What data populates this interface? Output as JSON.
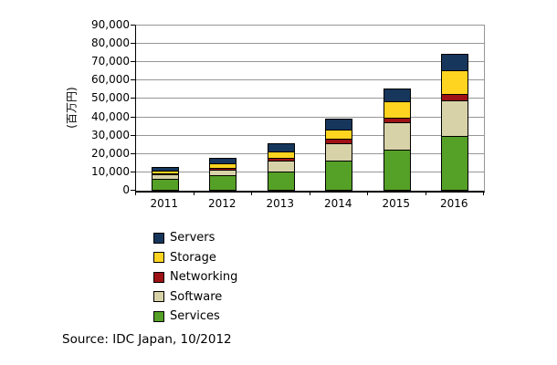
{
  "chart_data": {
    "type": "bar",
    "stacked": true,
    "categories": [
      "2011",
      "2012",
      "2013",
      "2014",
      "2015",
      "2016"
    ],
    "series": [
      {
        "name": "Servers",
        "color": "#16365C",
        "values": [
          2400,
          3800,
          5000,
          6300,
          7200,
          9500
        ]
      },
      {
        "name": "Storage",
        "color": "#FFD420",
        "values": [
          1900,
          2700,
          4000,
          5600,
          9600,
          13300
        ]
      },
      {
        "name": "Networking",
        "color": "#9E1114",
        "values": [
          600,
          1700,
          2200,
          2800,
          2900,
          3900
        ]
      },
      {
        "name": "Software",
        "color": "#D8D2A8",
        "values": [
          3100,
          3300,
          6300,
          10000,
          15300,
          20100
        ]
      },
      {
        "name": "Services",
        "color": "#55A026",
        "values": [
          6600,
          8500,
          10400,
          16600,
          22500,
          29700
        ]
      }
    ],
    "stack_order_bottom_to_top": [
      "Services",
      "Software",
      "Networking",
      "Storage",
      "Servers"
    ],
    "totals": [
      14600,
      20000,
      27900,
      41300,
      57500,
      76500
    ],
    "ylabel": "(百万円)",
    "ylim": [
      0,
      90000
    ],
    "ytick_step": 10000,
    "ytick_labels": [
      "0",
      "10,000",
      "20,000",
      "30,000",
      "40,000",
      "50,000",
      "60,000",
      "70,000",
      "80,000",
      "90,000"
    ],
    "grid": true,
    "legend_position": "below-plot-left",
    "legend": [
      "Servers",
      "Storage",
      "Networking",
      "Software",
      "Services"
    ]
  },
  "source_note": "Source: IDC Japan, 10/2012",
  "colors": {
    "gridline": "#969696",
    "axis": "#000000",
    "bar_border": "#000000",
    "text": "#000000",
    "background": "#ffffff"
  }
}
